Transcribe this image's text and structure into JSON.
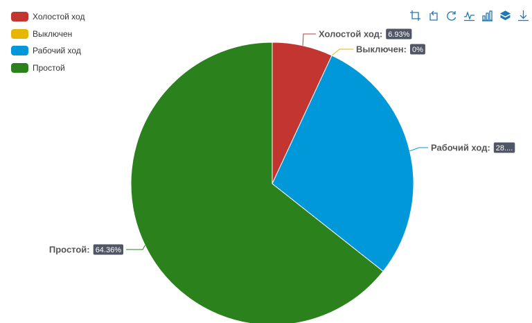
{
  "colors": {
    "idle": "#c23531",
    "off": "#e6b600",
    "working": "#0098d9",
    "downtime": "#2b821d",
    "badge": "#4f5766",
    "toolbox_icon": "#1f77b4"
  },
  "legend": {
    "items": [
      {
        "label": "Холостой ход",
        "color": "#c23531"
      },
      {
        "label": "Выключен",
        "color": "#e6b600"
      },
      {
        "label": "Рабочий ход",
        "color": "#0098d9"
      },
      {
        "label": "Простой",
        "color": "#2b821d"
      }
    ]
  },
  "toolbox": {
    "icons": [
      "zoom-icon",
      "zoom-reset-icon",
      "restore-icon",
      "line-chart-icon",
      "bar-chart-icon",
      "stack-icon",
      "download-icon"
    ]
  },
  "chart_data": {
    "type": "pie",
    "series": [
      {
        "name": "Холостой ход",
        "value": 6.93,
        "label": "Холостой ход:",
        "value_text": "6.93%",
        "color": "#c23531"
      },
      {
        "name": "Выключен",
        "value": 0,
        "label": "Выключен:",
        "value_text": "0%",
        "color": "#e6b600"
      },
      {
        "name": "Рабочий ход",
        "value": 28.71,
        "label": "Рабочий ход:",
        "value_text": "28....",
        "color": "#0098d9"
      },
      {
        "name": "Простой",
        "value": 64.36,
        "label": "Простой:",
        "value_text": "64.36%",
        "color": "#2b821d"
      }
    ],
    "legend_position": "top-left",
    "start_angle": "12 o'clock, clockwise"
  }
}
